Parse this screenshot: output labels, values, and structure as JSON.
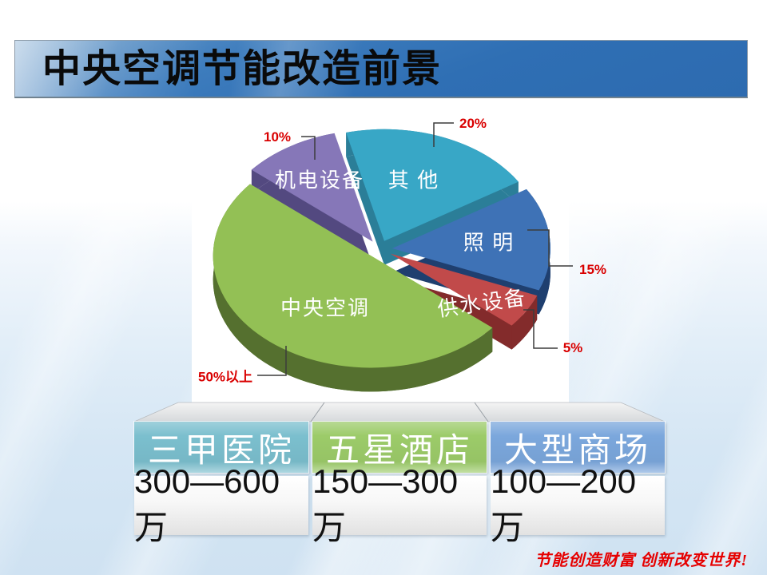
{
  "header": {
    "title": "中央空调节能改造前景"
  },
  "chart_data": {
    "type": "pie",
    "unit": "percent of building energy use",
    "start_angle_deg": -14,
    "direction": "clockwise",
    "legend_position": "inside-slices",
    "slices": [
      {
        "label": "其 他",
        "value": 20,
        "value_label": "20%",
        "color": "#38A7C6",
        "side_color": "#2B7E98"
      },
      {
        "label": "照 明",
        "value": 15,
        "value_label": "15%",
        "color": "#3E72B6",
        "side_color": "#1F3F6F"
      },
      {
        "label": "供水设备",
        "value": 5,
        "value_label": "5%",
        "color": "#C14A4A",
        "side_color": "#832B2B"
      },
      {
        "label": "中央空调",
        "value": 50,
        "value_label": "50%以上",
        "color": "#93C055",
        "side_color": "#55702F"
      },
      {
        "label": "机电设备",
        "value": 10,
        "value_label": "10%",
        "color": "#8677B8",
        "side_color": "#534980"
      }
    ]
  },
  "table": {
    "columns": [
      {
        "header": "三甲医院",
        "value": "300—600万",
        "header_color": "#7BBFCE"
      },
      {
        "header": "五星酒店",
        "value": "150—300万",
        "header_color": "#9CCB69"
      },
      {
        "header": "大型商场",
        "value": "100—200万",
        "header_color": "#7BA7DC"
      }
    ]
  },
  "footer": {
    "slogan": "节能创造财富 创新改变世界!"
  }
}
